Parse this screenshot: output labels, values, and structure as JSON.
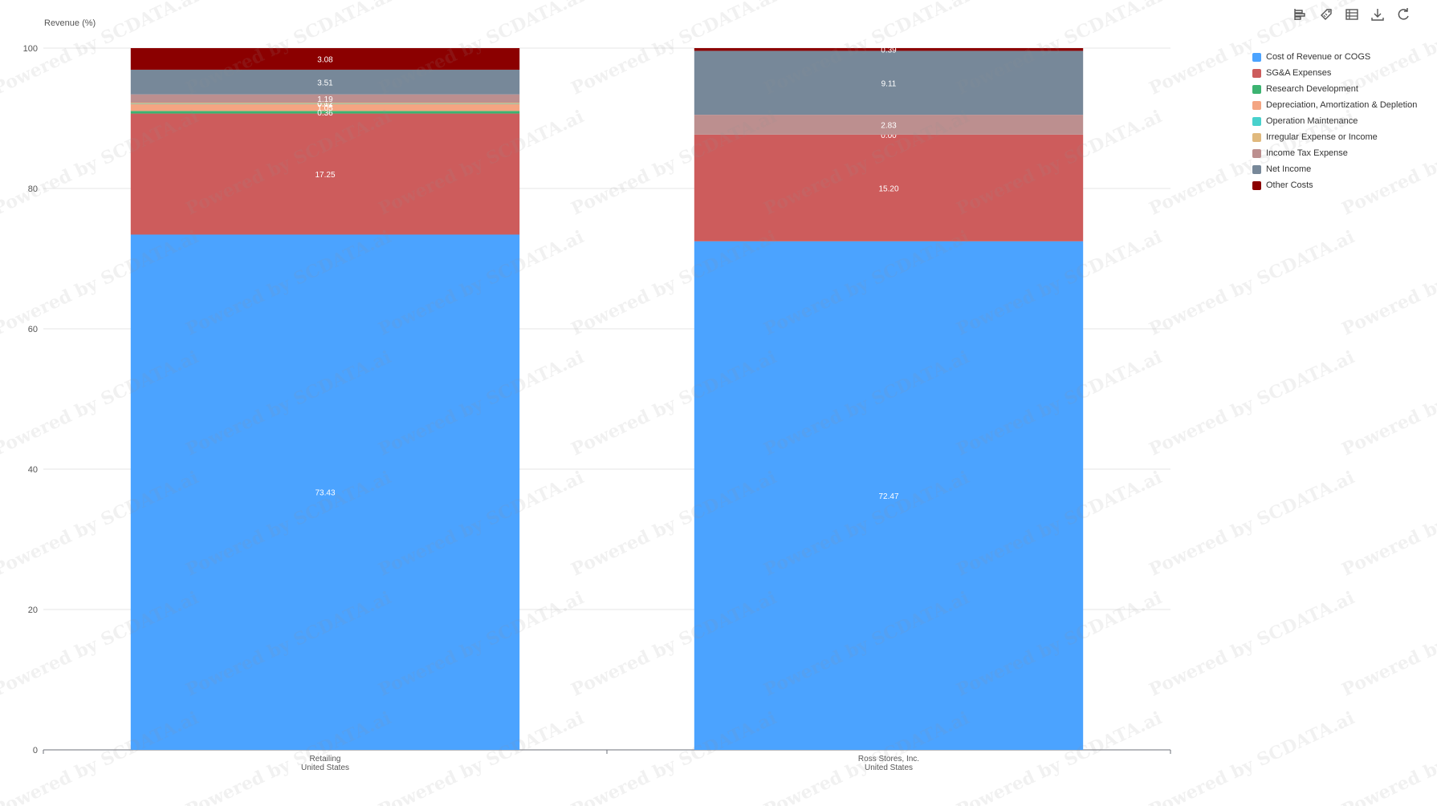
{
  "toolbar": {
    "icons": [
      "bar-chart-icon",
      "tag-icon",
      "table-icon",
      "download-icon",
      "refresh-icon"
    ]
  },
  "watermark": "Powered by SCDATA.ai",
  "chart_data": {
    "type": "bar",
    "stacked": true,
    "title": "",
    "ylabel": "Revenue (%)",
    "xlabel": "",
    "ylim": [
      0,
      100
    ],
    "yticks": [
      "0",
      "20",
      "40",
      "60",
      "80",
      "100"
    ],
    "grid": true,
    "legend_position": "right",
    "categories": [
      {
        "line1": "Retailing",
        "line2": "United States"
      },
      {
        "line1": "Ross Stores, Inc.",
        "line2": "United States"
      }
    ],
    "series": [
      {
        "name": "Cost of Revenue or COGS",
        "color": "#4BA3FF",
        "values": [
          73.43,
          72.47
        ],
        "labels": [
          "73.43",
          "72.47"
        ]
      },
      {
        "name": "SG&A Expenses",
        "color": "#CD5C5C",
        "values": [
          17.25,
          15.2
        ],
        "labels": [
          "17.25",
          "15.20"
        ]
      },
      {
        "name": "Research Development",
        "color": "#3CB371",
        "values": [
          0.36,
          0.0
        ],
        "labels": [
          "0.36",
          ""
        ]
      },
      {
        "name": "Depreciation, Amortization & Depletion",
        "color": "#F4A582",
        "values": [
          1.05,
          0.0
        ],
        "labels": [
          "1.05",
          ""
        ]
      },
      {
        "name": "Operation Maintenance",
        "color": "#48D1CC",
        "values": [
          0.01,
          0.0
        ],
        "labels": [
          "0.01",
          ""
        ]
      },
      {
        "name": "Irregular Expense or Income",
        "color": "#E0B97D",
        "values": [
          0.12,
          0.0
        ],
        "labels": [
          "0.12",
          "0.00"
        ]
      },
      {
        "name": "Income Tax Expense",
        "color": "#BC8F8F",
        "values": [
          1.19,
          2.83
        ],
        "labels": [
          "1.19",
          "2.83"
        ]
      },
      {
        "name": "Net Income",
        "color": "#778899",
        "values": [
          3.51,
          9.11
        ],
        "labels": [
          "3.51",
          "9.11"
        ]
      },
      {
        "name": "Other Costs",
        "color": "#8B0000",
        "values": [
          3.08,
          0.39
        ],
        "labels": [
          "3.08",
          "0.39"
        ]
      }
    ]
  }
}
